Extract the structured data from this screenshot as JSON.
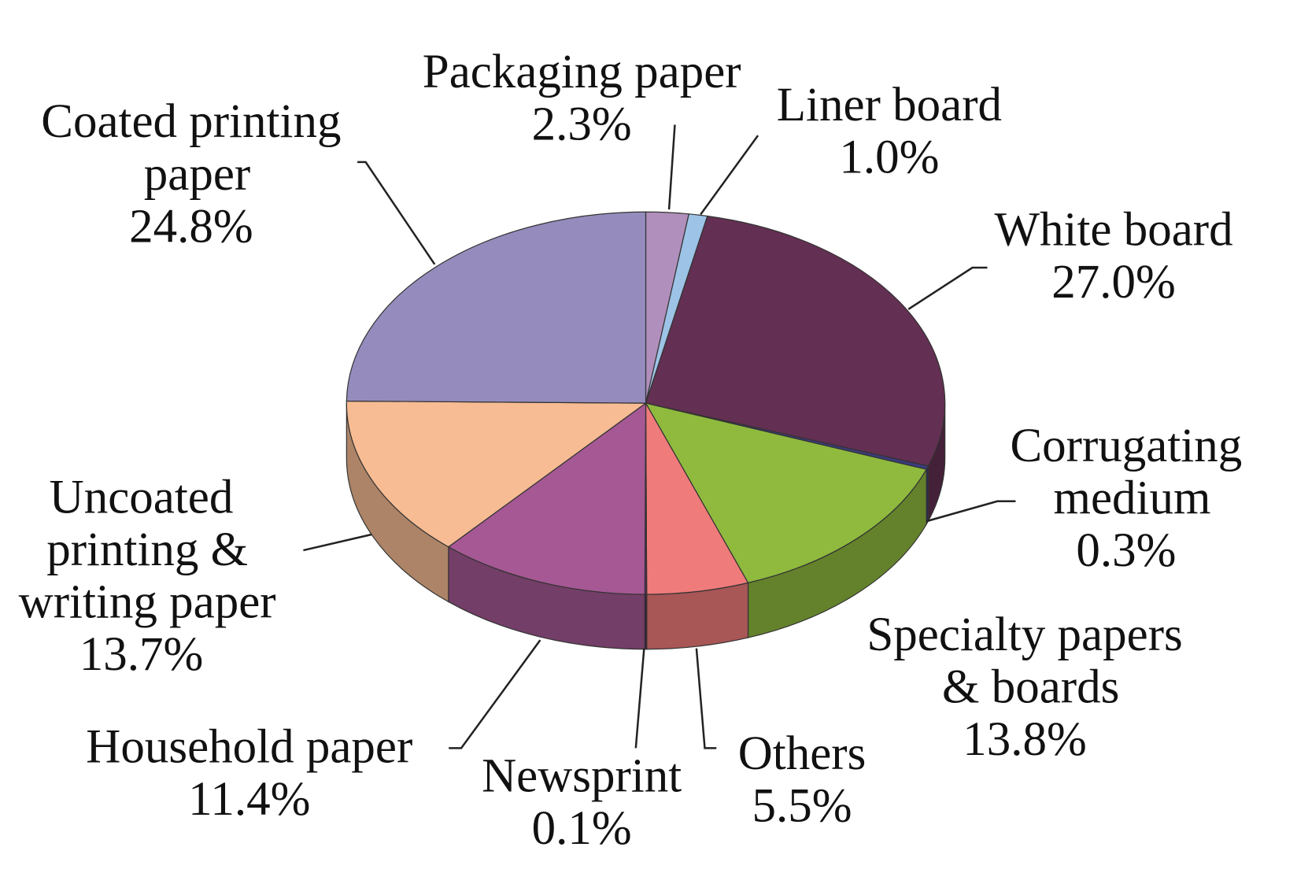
{
  "chart_data": {
    "type": "pie3d",
    "categories": [
      "Packaging paper",
      "Liner board",
      "White board",
      "Corrugating medium",
      "Specialty papers & boards",
      "Others",
      "Newsprint",
      "Household paper",
      "Uncoated printing & writing paper",
      "Coated printing paper"
    ],
    "values": [
      2.3,
      1.0,
      27.0,
      0.3,
      13.8,
      5.5,
      0.1,
      11.4,
      13.7,
      24.8
    ],
    "value_labels": [
      "2.3%",
      "1.0%",
      "27.0%",
      "0.3%",
      "13.8%",
      "5.5%",
      "0.1%",
      "11.4%",
      "13.7%",
      "24.8%"
    ],
    "colors": [
      "#b08fbc",
      "#9dc3e6",
      "#632f52",
      "#3b3b7e",
      "#8fba3e",
      "#f07b7b",
      "#5a2a5a",
      "#a55893",
      "#f7bc93",
      "#958cbd"
    ]
  }
}
